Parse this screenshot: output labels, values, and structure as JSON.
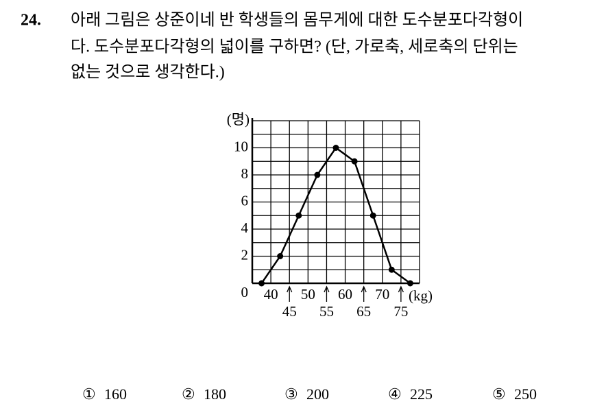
{
  "question": {
    "number": "24.",
    "lines": [
      "아래 그림은 상준이네 반 학생들의 몸무게에 대한 도수분포다각형이",
      "다. 도수분포다각형의 넓이를 구하면? (단, 가로축, 세로축의 단위는",
      "없는 것으로 생각한다.)"
    ]
  },
  "chart_data": {
    "type": "line",
    "ylabel": "(명)",
    "xlabel": "(kg)",
    "x": [
      37.5,
      42.5,
      47.5,
      52.5,
      57.5,
      62.5,
      67.5,
      72.5,
      77.5
    ],
    "values": [
      0,
      2,
      5,
      8,
      10,
      9,
      5,
      1,
      0
    ],
    "color": "#000000",
    "xlim": [
      35,
      80
    ],
    "ylim": [
      0,
      12
    ],
    "xticks": [
      40,
      45,
      50,
      55,
      60,
      65,
      70,
      75
    ],
    "yticks": [
      0,
      2,
      4,
      6,
      8,
      10
    ],
    "grid": true,
    "xgrid_step": 5,
    "ygrid_step": 1
  },
  "choices": [
    {
      "mark": "①",
      "value": 160
    },
    {
      "mark": "②",
      "value": 180
    },
    {
      "mark": "③",
      "value": 200
    },
    {
      "mark": "④",
      "value": 225
    },
    {
      "mark": "⑤",
      "value": 250
    }
  ]
}
